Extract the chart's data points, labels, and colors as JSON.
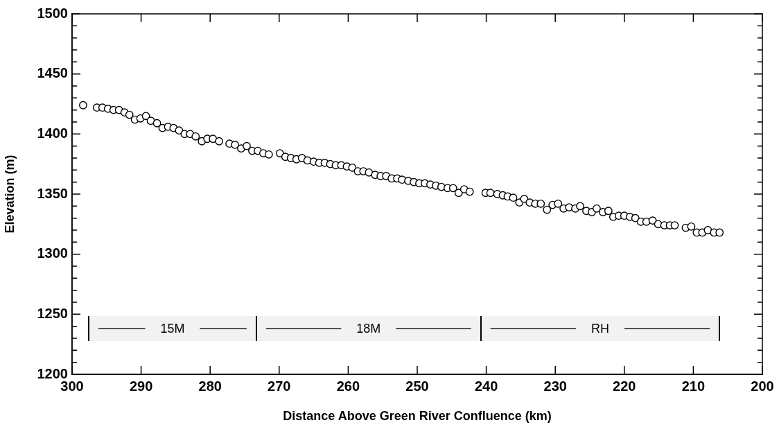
{
  "chart_data": {
    "type": "scatter",
    "xlabel": "Distance Above Green River Confluence (km)",
    "ylabel": "Elevation (m)",
    "xlim": [
      300,
      200
    ],
    "ylim": [
      1200,
      1500
    ],
    "xticks": [
      300,
      290,
      280,
      270,
      260,
      250,
      240,
      230,
      220,
      210,
      200
    ],
    "yticks": [
      1200,
      {
        "value": 1210,
        "label": null
      },
      {
        "value": 1220,
        "label": null
      },
      {
        "value": 1230,
        "label": null
      },
      {
        "value": 1240,
        "label": null
      },
      1250,
      {
        "value": 1260,
        "label": null
      },
      {
        "value": 1270,
        "label": null
      },
      {
        "value": 1280,
        "label": null
      },
      {
        "value": 1290,
        "label": null
      },
      1300,
      {
        "value": 1310,
        "label": null
      },
      {
        "value": 1320,
        "label": null
      },
      {
        "value": 1330,
        "label": null
      },
      {
        "value": 1340,
        "label": null
      },
      1350,
      {
        "value": 1360,
        "label": null
      },
      {
        "value": 1370,
        "label": null
      },
      {
        "value": 1380,
        "label": null
      },
      {
        "value": 1390,
        "label": null
      },
      1400,
      {
        "value": 1410,
        "label": null
      },
      {
        "value": 1420,
        "label": null
      },
      {
        "value": 1430,
        "label": null
      },
      {
        "value": 1440,
        "label": null
      },
      1450,
      {
        "value": 1460,
        "label": null
      },
      {
        "value": 1470,
        "label": null
      },
      {
        "value": 1480,
        "label": null
      },
      {
        "value": 1490,
        "label": null
      },
      1500
    ],
    "grid": false,
    "legend": false,
    "marker": "circle",
    "bands": [
      {
        "axis": "x",
        "from": 297.6,
        "to": 273.3,
        "label": "15M",
        "color": "#f2f2f2"
      },
      {
        "axis": "x",
        "from": 273.3,
        "to": 240.8,
        "label": "18M",
        "color": "#f2f2f2"
      },
      {
        "axis": "x",
        "from": 240.8,
        "to": 206.2,
        "label": "RH",
        "color": "#f2f2f2"
      }
    ],
    "series": [
      {
        "color": "#000000",
        "x": [
          298.4,
          296.4,
          295.6,
          294.8,
          294.0,
          293.2,
          292.4,
          291.7,
          290.9,
          290.1,
          289.3,
          288.6,
          287.7,
          286.9,
          286.1,
          285.3,
          284.5,
          283.7,
          282.9,
          282.1,
          281.2,
          280.4,
          279.6,
          278.7,
          277.2,
          276.4,
          275.5,
          274.7,
          273.9,
          273.1,
          272.3,
          271.5,
          269.9,
          269.1,
          268.3,
          267.5,
          266.7,
          265.9,
          265.0,
          264.2,
          263.4,
          262.6,
          261.8,
          261.0,
          260.2,
          259.4,
          258.6,
          257.8,
          257.0,
          256.1,
          255.3,
          254.5,
          253.7,
          252.9,
          252.2,
          251.3,
          250.5,
          249.7,
          248.9,
          248.1,
          247.3,
          246.5,
          245.6,
          244.8,
          244.0,
          243.2,
          242.4,
          240.1,
          239.4,
          238.4,
          237.6,
          236.9,
          236.1,
          235.2,
          234.5,
          233.7,
          232.9,
          232.1,
          231.2,
          230.4,
          229.6,
          228.8,
          228.0,
          227.1,
          226.4,
          225.5,
          224.7,
          224.0,
          223.1,
          222.3,
          221.6,
          220.8,
          220.0,
          219.2,
          218.4,
          217.6,
          216.8,
          215.9,
          215.1,
          214.2,
          213.4,
          212.7,
          211.1,
          210.3,
          209.5,
          208.7,
          207.9,
          207.0,
          206.2
        ],
        "values": [
          1424,
          1422,
          1422,
          1421,
          1420,
          1420,
          1418,
          1416,
          1412,
          1413,
          1415,
          1411,
          1409,
          1405,
          1406,
          1405,
          1403,
          1400,
          1400,
          1398,
          1394,
          1396,
          1396,
          1394,
          1392,
          1391,
          1388,
          1390,
          1386,
          1386,
          1384,
          1383,
          1384,
          1381,
          1380,
          1379,
          1380,
          1378,
          1377,
          1376,
          1376,
          1375,
          1374,
          1374,
          1373,
          1372,
          1369,
          1369,
          1368,
          1366,
          1365,
          1365,
          1363,
          1363,
          1362,
          1361,
          1360,
          1359,
          1359,
          1358,
          1357,
          1356,
          1355,
          1355,
          1351,
          1354,
          1352,
          1351,
          1351,
          1350,
          1349,
          1348,
          1347,
          1343,
          1346,
          1343,
          1342,
          1342,
          1337,
          1341,
          1342,
          1338,
          1339,
          1338,
          1340,
          1336,
          1335,
          1338,
          1335,
          1336,
          1331,
          1332,
          1332,
          1331,
          1330,
          1327,
          1327,
          1328,
          1325,
          1324,
          1324,
          1324,
          1322,
          1323,
          1318,
          1318,
          1320,
          1318,
          1318
        ]
      }
    ]
  }
}
